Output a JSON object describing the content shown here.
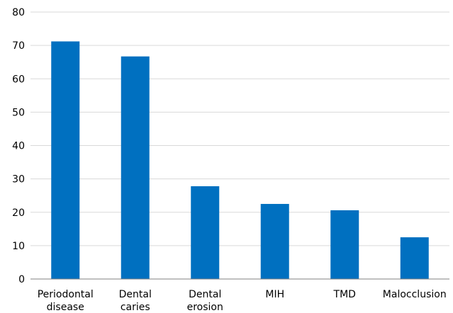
{
  "chart_data": {
    "type": "bar",
    "title": "",
    "xlabel": "",
    "ylabel": "",
    "categories": [
      [
        "Periodontal",
        "disease"
      ],
      [
        "Dental",
        "caries"
      ],
      [
        "Dental",
        "erosion"
      ],
      [
        "MIH"
      ],
      [
        "TMD"
      ],
      [
        "Malocclusion"
      ]
    ],
    "values": [
      71.2,
      66.7,
      27.8,
      22.5,
      20.6,
      12.5
    ],
    "ylim": [
      0,
      80
    ],
    "yticks": [
      "0",
      "10",
      "20",
      "30",
      "40",
      "50",
      "60",
      "70",
      "80"
    ],
    "grid": true,
    "legend": "none",
    "colors": {
      "bar": "#0070C0",
      "grid": "#D9D9D9",
      "axis": "#808080"
    }
  }
}
